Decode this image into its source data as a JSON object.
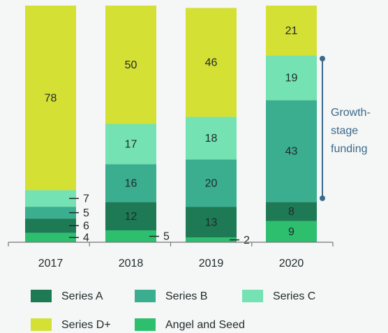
{
  "chart_data": {
    "type": "stacked_bar",
    "categories": [
      "2017",
      "2018",
      "2019",
      "2020"
    ],
    "series": [
      {
        "name": "Series A",
        "color": "#1e7a55",
        "values": [
          6,
          12,
          13,
          8
        ]
      },
      {
        "name": "Series B",
        "color": "#3aae8f",
        "values": [
          5,
          16,
          20,
          43
        ]
      },
      {
        "name": "Series C",
        "color": "#74e2b2",
        "values": [
          7,
          17,
          18,
          19
        ]
      },
      {
        "name": "Series D+",
        "color": "#d4e034",
        "values": [
          78,
          50,
          46,
          21
        ]
      },
      {
        "name": "Angel and Seed",
        "color": "#2dbf6e",
        "values": [
          4,
          5,
          2,
          9
        ]
      }
    ],
    "ylim": [
      0,
      100
    ],
    "annotation": [
      "Growth-",
      "stage",
      "funding"
    ]
  }
}
